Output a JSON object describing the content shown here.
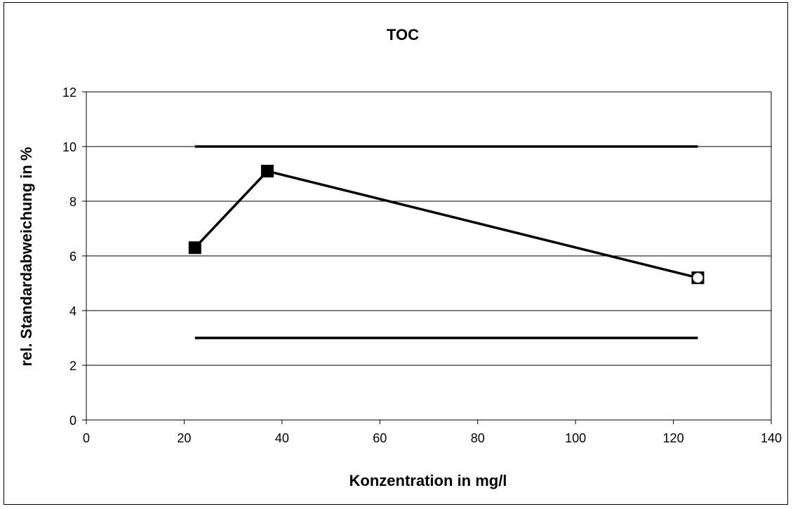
{
  "chart_data": {
    "type": "line",
    "title": "TOC",
    "xlabel": "Konzentration in mg/l",
    "ylabel": "rel. Standardabweichung in %",
    "xlim": [
      0,
      140
    ],
    "ylim": [
      0,
      12
    ],
    "xticks": [
      0,
      20,
      40,
      60,
      80,
      100,
      120,
      140
    ],
    "yticks": [
      0,
      2,
      4,
      6,
      8,
      10,
      12
    ],
    "grid": "horizontal",
    "legend": "none",
    "series": [
      {
        "marker": "square",
        "color": "#000000",
        "points": [
          {
            "x": 22.2,
            "y": 6.3,
            "marker": "square"
          },
          {
            "x": 37,
            "y": 9.1,
            "marker": "square"
          },
          {
            "x": 125,
            "y": 5.2,
            "marker": "square-with-circle"
          }
        ]
      },
      {
        "marker": "none",
        "color": "#000000",
        "points": [
          {
            "x": 22.2,
            "y": 10
          },
          {
            "x": 125,
            "y": 10
          }
        ]
      },
      {
        "marker": "none",
        "color": "#000000",
        "points": [
          {
            "x": 22.2,
            "y": 3
          },
          {
            "x": 125,
            "y": 3
          }
        ]
      }
    ]
  }
}
